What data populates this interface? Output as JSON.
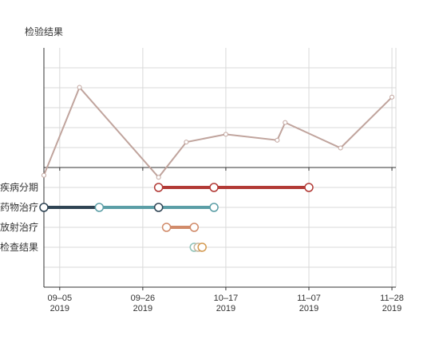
{
  "chart_data": {
    "type": "line",
    "title": "检验结果",
    "x_ticks": [
      {
        "date": "2019-09-05",
        "line1": "09–05",
        "line2": "2019"
      },
      {
        "date": "2019-09-26",
        "line1": "09–26",
        "line2": "2019"
      },
      {
        "date": "2019-10-17",
        "line1": "10–17",
        "line2": "2019"
      },
      {
        "date": "2019-11-07",
        "line1": "11–07",
        "line2": "2019"
      },
      {
        "date": "2019-11-28",
        "line1": "11–28",
        "line2": "2019"
      }
    ],
    "xlim": [
      "2019-09-01",
      "2019-11-29"
    ],
    "grid": true,
    "line_series": {
      "color": "#c0a49d",
      "points": [
        {
          "x": "2019-09-01",
          "y": -0.4
        },
        {
          "x": "2019-09-10",
          "y": 4.1
        },
        {
          "x": "2019-09-30",
          "y": -0.5
        },
        {
          "x": "2019-10-07",
          "y": 1.3
        },
        {
          "x": "2019-10-17",
          "y": 1.7
        },
        {
          "x": "2019-10-30",
          "y": 1.4
        },
        {
          "x": "2019-11-01",
          "y": 2.3
        },
        {
          "x": "2019-11-15",
          "y": 1.0
        },
        {
          "x": "2019-11-28",
          "y": 3.6
        }
      ]
    },
    "timeline_rows": [
      {
        "label": "疾病分期",
        "color": "#b23a36",
        "segments": [
          {
            "start": "2019-09-30",
            "end": "2019-11-07"
          }
        ],
        "markers": [
          "2019-09-30",
          "2019-10-14",
          "2019-11-07"
        ]
      },
      {
        "label": "药物治疗",
        "color": "#2f4454",
        "color2": "#5b9ea6",
        "segments": [
          {
            "start": "2019-09-01",
            "end": "2019-09-15",
            "color": "#2f4454"
          },
          {
            "start": "2019-09-15",
            "end": "2019-10-14",
            "color": "#5b9ea6"
          }
        ],
        "markers": [
          {
            "date": "2019-09-01",
            "color": "#2f4454"
          },
          {
            "date": "2019-09-15",
            "color": "#5b9ea6"
          },
          {
            "date": "2019-09-30",
            "color": "#2f4454"
          },
          {
            "date": "2019-10-14",
            "color": "#5b9ea6"
          }
        ]
      },
      {
        "label": "放射治疗",
        "color": "#d18b6a",
        "segments": [
          {
            "start": "2019-10-02",
            "end": "2019-10-09"
          }
        ],
        "markers": [
          "2019-10-02",
          "2019-10-09"
        ]
      },
      {
        "label": "检查结果",
        "color": "#d4a060",
        "segments": [],
        "markers": [
          {
            "date": "2019-10-09",
            "color": "#8fc2b8"
          },
          {
            "date": "2019-10-10",
            "color": "#c7b8a0"
          },
          {
            "date": "2019-10-11",
            "color": "#d49a50"
          }
        ]
      }
    ]
  }
}
